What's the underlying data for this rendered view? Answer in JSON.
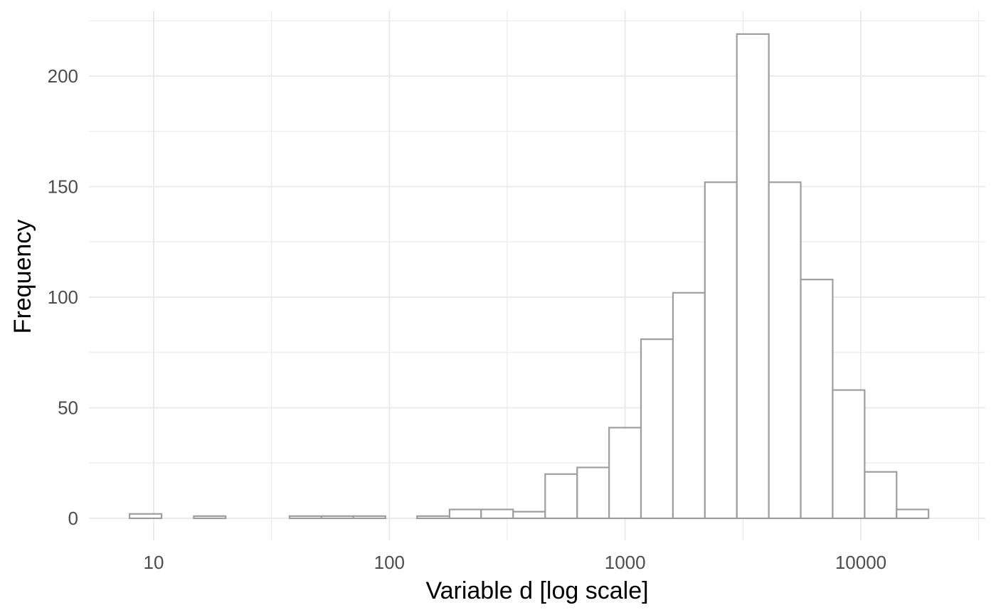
{
  "chart_data": {
    "type": "bar",
    "subtype": "histogram",
    "title": "",
    "xlabel": "Variable d  [log scale]",
    "ylabel": "Frequency",
    "x_scale": "log10",
    "xlim": [
      5.5,
      30000
    ],
    "ylim": [
      -8,
      224
    ],
    "x_ticks": [
      10,
      100,
      1000,
      10000
    ],
    "x_tick_labels": [
      "10",
      "100",
      "1000",
      "10000"
    ],
    "y_ticks": [
      0,
      50,
      100,
      150,
      200
    ],
    "y_tick_labels": [
      "0",
      "50",
      "100",
      "150",
      "200"
    ],
    "grid": true,
    "legend": "none",
    "colors": {
      "bar_fill": "#ffffff",
      "bar_outline": "#9e9e9e",
      "grid": "#ebebeb"
    },
    "bins": [
      {
        "x_start": 7.9,
        "x_end": 10.8,
        "count": 2
      },
      {
        "x_start": 10.8,
        "x_end": 14.8,
        "count": 0
      },
      {
        "x_start": 14.8,
        "x_end": 20.2,
        "count": 1
      },
      {
        "x_start": 20.2,
        "x_end": 27.6,
        "count": 0
      },
      {
        "x_start": 27.6,
        "x_end": 37.7,
        "count": 0
      },
      {
        "x_start": 37.7,
        "x_end": 51.5,
        "count": 1
      },
      {
        "x_start": 51.5,
        "x_end": 70.4,
        "count": 1
      },
      {
        "x_start": 70.4,
        "x_end": 96.2,
        "count": 1
      },
      {
        "x_start": 96.2,
        "x_end": 131,
        "count": 0
      },
      {
        "x_start": 131,
        "x_end": 180,
        "count": 1
      },
      {
        "x_start": 180,
        "x_end": 245,
        "count": 4
      },
      {
        "x_start": 245,
        "x_end": 335,
        "count": 4
      },
      {
        "x_start": 335,
        "x_end": 458,
        "count": 3
      },
      {
        "x_start": 458,
        "x_end": 626,
        "count": 20
      },
      {
        "x_start": 626,
        "x_end": 855,
        "count": 23
      },
      {
        "x_start": 855,
        "x_end": 1168,
        "count": 41
      },
      {
        "x_start": 1168,
        "x_end": 1596,
        "count": 81
      },
      {
        "x_start": 1596,
        "x_end": 2180,
        "count": 102
      },
      {
        "x_start": 2180,
        "x_end": 2979,
        "count": 152
      },
      {
        "x_start": 2979,
        "x_end": 4070,
        "count": 219
      },
      {
        "x_start": 4070,
        "x_end": 5560,
        "count": 152
      },
      {
        "x_start": 5560,
        "x_end": 7597,
        "count": 108
      },
      {
        "x_start": 7597,
        "x_end": 10380,
        "count": 58
      },
      {
        "x_start": 10380,
        "x_end": 14180,
        "count": 21
      },
      {
        "x_start": 14180,
        "x_end": 19370,
        "count": 4
      }
    ]
  }
}
